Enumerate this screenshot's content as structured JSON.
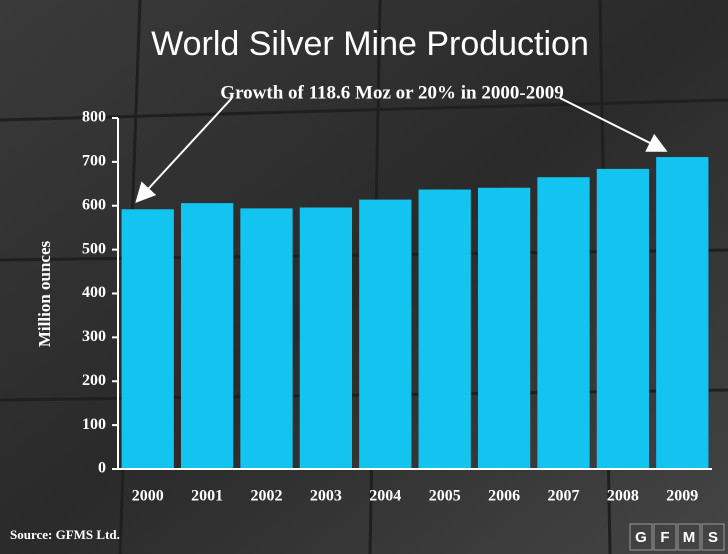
{
  "chart_data": {
    "type": "bar",
    "title": "World Silver Mine Production",
    "annotation": "Growth of 118.6 Moz or 20% in 2000-2009",
    "y_label": "Million ounces",
    "categories": [
      "2000",
      "2001",
      "2002",
      "2003",
      "2004",
      "2005",
      "2006",
      "2007",
      "2008",
      "2009"
    ],
    "values": [
      592,
      606,
      594,
      596,
      614,
      637,
      641,
      665,
      684,
      711
    ],
    "color": "#14c4f0",
    "ylim": [
      0,
      800
    ],
    "yticks": [
      0,
      100,
      200,
      300,
      400,
      500,
      600,
      700,
      800
    ],
    "grid": false
  },
  "source": "Source: GFMS Ltd.",
  "logo": [
    "G",
    "F",
    "M",
    "S"
  ]
}
